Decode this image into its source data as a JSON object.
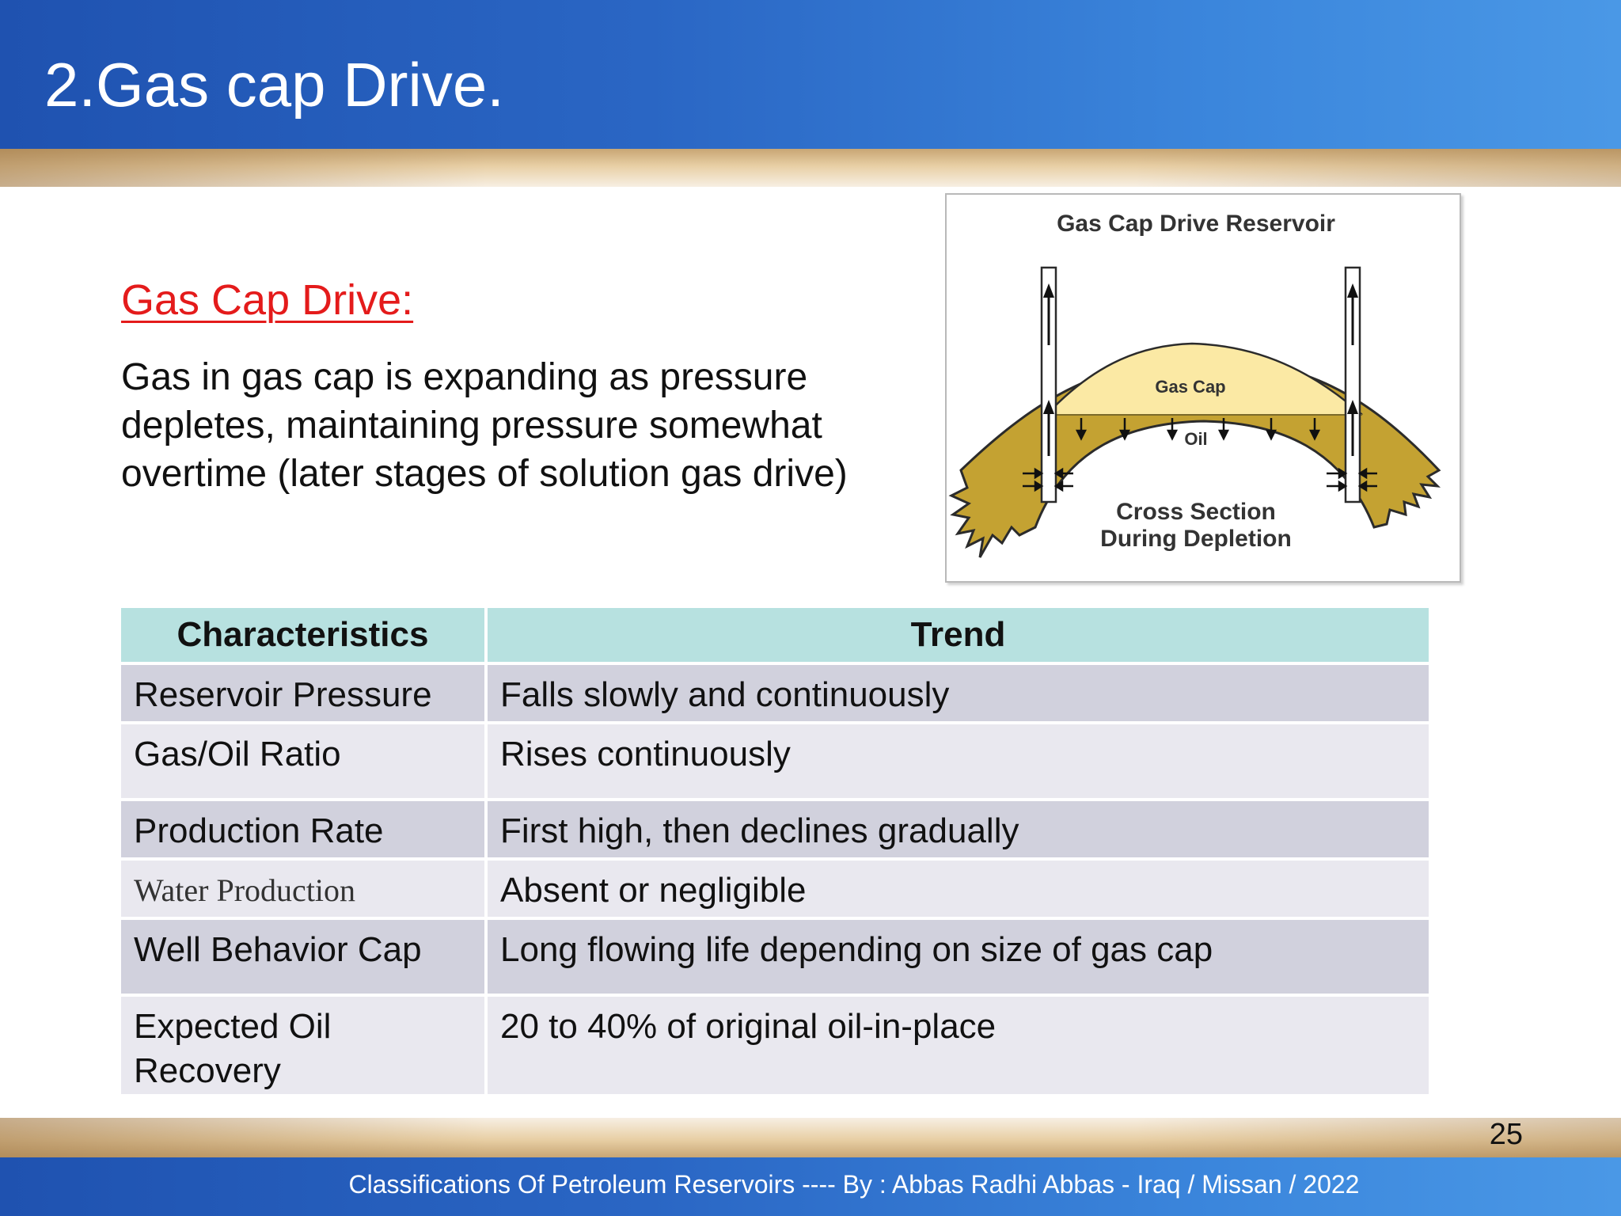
{
  "slide": {
    "title": "2.Gas cap Drive.",
    "subheading": "Gas Cap Drive:",
    "body": "Gas in gas cap is expanding as pressure depletes, maintaining pressure somewhat overtime (later stages of solution gas drive)"
  },
  "figure": {
    "title": "Gas Cap Drive Reservoir",
    "label_gas_cap": "Gas Cap",
    "label_oil": "Oil",
    "caption_line1": "Cross Section",
    "caption_line2": "During Depletion",
    "colors": {
      "gas_cap": "#fbe9a4",
      "oil_rock": "#c4a232",
      "outline": "#2b2b2b"
    }
  },
  "table": {
    "headers": [
      "Characteristics",
      "Trend"
    ],
    "rows": [
      [
        "Reservoir Pressure",
        "Falls slowly and continuously"
      ],
      [
        "Gas/Oil Ratio",
        "Rises continuously"
      ],
      [
        "Production Rate",
        "First high, then declines gradually"
      ],
      [
        "Water Production",
        "Absent or negligible"
      ],
      [
        "Well Behavior Cap",
        "Long flowing life depending on size of gas cap"
      ],
      [
        "Expected Oil Recovery",
        "20 to 40% of original oil-in-place"
      ]
    ],
    "colors": {
      "header_bg": "#b7e1e0",
      "row_dark": "#d1d1dd",
      "row_light": "#e9e8ef"
    }
  },
  "footer": {
    "text": "Classifications Of Petroleum Reservoirs ---- By : Abbas Radhi Abbas  - Iraq / Missan / 2022",
    "page_number": "25"
  },
  "theme": {
    "title_band": "#2a66c4",
    "accent_red": "#e41b1b",
    "gold": "#d8b88a"
  }
}
